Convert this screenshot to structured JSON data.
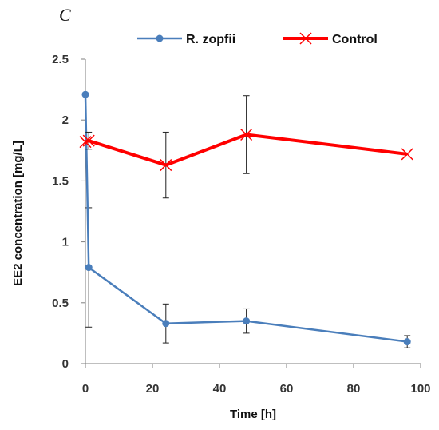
{
  "panel_label": "C",
  "chart_data": {
    "type": "line",
    "title": "",
    "xlabel": "Time [h]",
    "ylabel": "EE2 concentration [mg/L]",
    "xlim": [
      0,
      100
    ],
    "ylim": [
      0,
      2.5
    ],
    "x_ticks": [
      0,
      20,
      40,
      60,
      80,
      100
    ],
    "y_ticks": [
      "0",
      "0.5",
      "1",
      "1.5",
      "2",
      "2.5"
    ],
    "grid": false,
    "legend_position": "top",
    "series": [
      {
        "name": "R. zopfii",
        "color": "#4a7ebb",
        "marker": "circle",
        "x": [
          0,
          1,
          24,
          48,
          96
        ],
        "y": [
          2.21,
          0.79,
          0.33,
          0.35,
          0.18
        ],
        "error": [
          null,
          0.49,
          0.16,
          0.1,
          0.05
        ]
      },
      {
        "name": "Control",
        "color": "#ff0000",
        "marker": "x",
        "x": [
          0,
          1,
          24,
          48,
          96
        ],
        "y": [
          1.82,
          1.83,
          1.63,
          1.88,
          1.72
        ],
        "error": [
          null,
          0.07,
          0.27,
          0.32,
          null
        ]
      }
    ]
  }
}
